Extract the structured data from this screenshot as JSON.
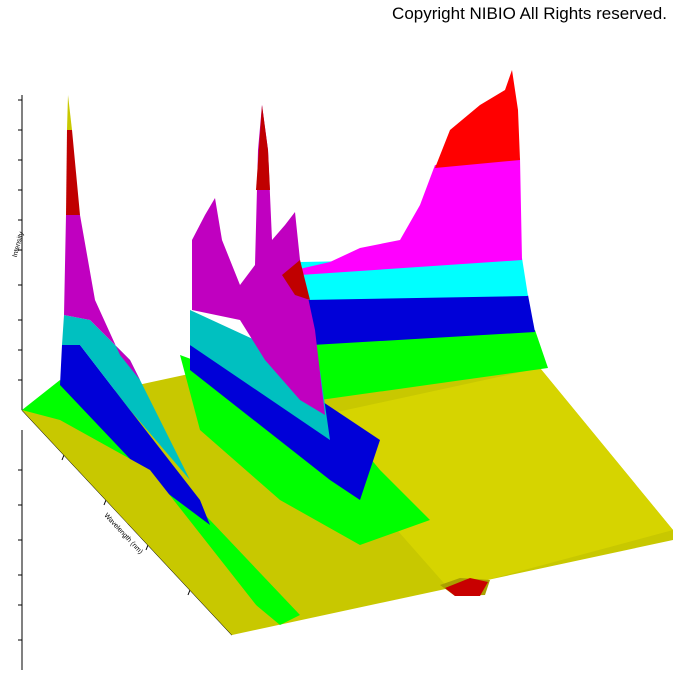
{
  "copyright": "Copyright NIBIO All Rights reserved.",
  "axes": {
    "z_label": "Intensity",
    "x_label": "Wavelength (nm)"
  }
}
